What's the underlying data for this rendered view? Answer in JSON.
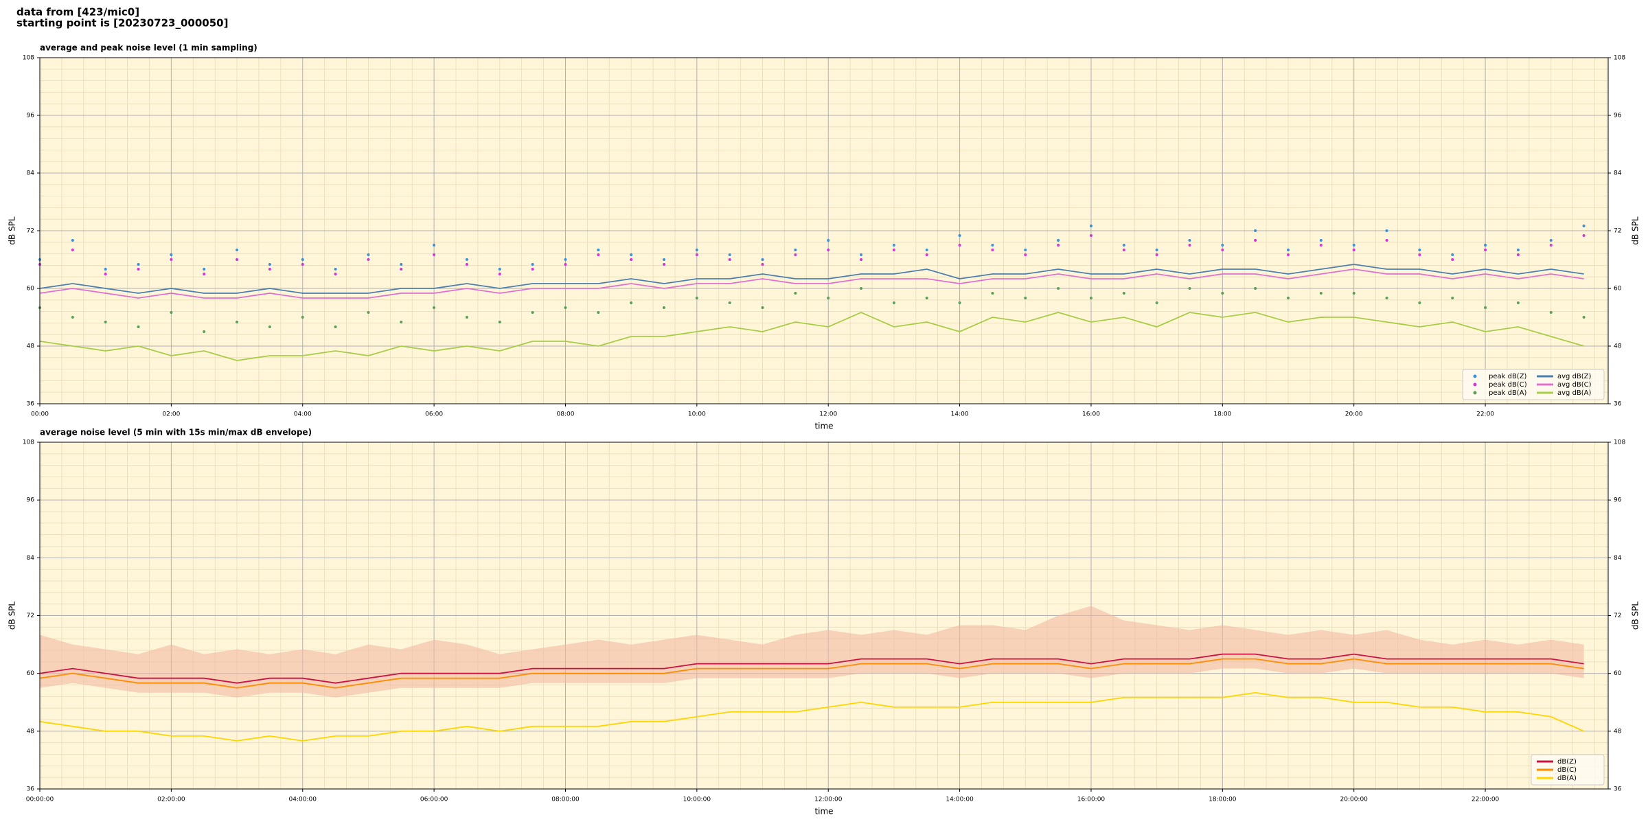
{
  "header": {
    "line1": "data from [423/mic0]",
    "line2": "starting point is [20230723_000050]"
  },
  "chart_data": [
    {
      "type": "line",
      "title": "average and peak noise level (1 min sampling)",
      "xlabel": "time",
      "ylabel": "dB SPL",
      "background": "#fff6d9",
      "grid": true,
      "minor_grid": true,
      "legend": "lower right",
      "xlim": [
        0,
        23.87
      ],
      "ylim": [
        36,
        108
      ],
      "yticks": [
        36,
        48,
        60,
        72,
        84,
        96,
        108
      ],
      "xticks": [
        {
          "value": 0,
          "label": "00:00"
        },
        {
          "value": 2,
          "label": "02:00"
        },
        {
          "value": 4,
          "label": "04:00"
        },
        {
          "value": 6,
          "label": "06:00"
        },
        {
          "value": 8,
          "label": "08:00"
        },
        {
          "value": 10,
          "label": "10:00"
        },
        {
          "value": 12,
          "label": "12:00"
        },
        {
          "value": 14,
          "label": "14:00"
        },
        {
          "value": 16,
          "label": "16:00"
        },
        {
          "value": 18,
          "label": "18:00"
        },
        {
          "value": 20,
          "label": "20:00"
        },
        {
          "value": 22,
          "label": "22:00"
        }
      ],
      "x": [
        0,
        0.5,
        1,
        1.5,
        2,
        2.5,
        3,
        3.5,
        4,
        4.5,
        5,
        5.5,
        6,
        6.5,
        7,
        7.5,
        8,
        8.5,
        9,
        9.5,
        10,
        10.5,
        11,
        11.5,
        12,
        12.5,
        13,
        13.5,
        14,
        14.5,
        15,
        15.5,
        16,
        16.5,
        17,
        17.5,
        18,
        18.5,
        19,
        19.5,
        20,
        20.5,
        21,
        21.5,
        22,
        22.5,
        23,
        23.5
      ],
      "series": [
        {
          "name": "peak dB(Z)",
          "style": "dots",
          "color": "#3b8fd9",
          "values": [
            66,
            70,
            64,
            65,
            67,
            64,
            68,
            65,
            66,
            64,
            67,
            65,
            69,
            66,
            64,
            65,
            66,
            68,
            67,
            66,
            68,
            67,
            66,
            68,
            70,
            67,
            69,
            68,
            71,
            69,
            68,
            70,
            73,
            69,
            68,
            70,
            69,
            72,
            68,
            70,
            69,
            72,
            68,
            67,
            69,
            68,
            70,
            73
          ]
        },
        {
          "name": "peak dB(C)",
          "style": "dots",
          "color": "#d633d6",
          "values": [
            65,
            68,
            63,
            64,
            66,
            63,
            66,
            64,
            65,
            63,
            66,
            64,
            67,
            65,
            63,
            64,
            65,
            67,
            66,
            65,
            67,
            66,
            65,
            67,
            68,
            66,
            68,
            67,
            69,
            68,
            67,
            69,
            71,
            68,
            67,
            69,
            68,
            70,
            67,
            69,
            68,
            70,
            67,
            66,
            68,
            67,
            69,
            71
          ]
        },
        {
          "name": "peak dB(A)",
          "style": "dots",
          "color": "#5a9e5a",
          "values": [
            56,
            54,
            53,
            52,
            55,
            51,
            53,
            52,
            54,
            52,
            55,
            53,
            56,
            54,
            53,
            55,
            56,
            55,
            57,
            56,
            58,
            57,
            56,
            59,
            58,
            60,
            57,
            58,
            57,
            59,
            58,
            60,
            58,
            59,
            57,
            60,
            59,
            60,
            58,
            59,
            59,
            58,
            57,
            58,
            56,
            57,
            55,
            54
          ]
        },
        {
          "name": "avg dB(Z)",
          "style": "line",
          "color": "#4a7fb0",
          "values": [
            60,
            61,
            60,
            59,
            60,
            59,
            59,
            60,
            59,
            59,
            59,
            60,
            60,
            61,
            60,
            61,
            61,
            61,
            62,
            61,
            62,
            62,
            63,
            62,
            62,
            63,
            63,
            64,
            62,
            63,
            63,
            64,
            63,
            63,
            64,
            63,
            64,
            64,
            63,
            64,
            65,
            64,
            64,
            63,
            64,
            63,
            64,
            63
          ]
        },
        {
          "name": "avg dB(C)",
          "style": "line",
          "color": "#e070d0",
          "values": [
            59,
            60,
            59,
            58,
            59,
            58,
            58,
            59,
            58,
            58,
            58,
            59,
            59,
            60,
            59,
            60,
            60,
            60,
            61,
            60,
            61,
            61,
            62,
            61,
            61,
            62,
            62,
            62,
            61,
            62,
            62,
            63,
            62,
            62,
            63,
            62,
            63,
            63,
            62,
            63,
            64,
            63,
            63,
            62,
            63,
            62,
            63,
            62
          ]
        },
        {
          "name": "avg dB(A)",
          "style": "line",
          "color": "#a8cc45",
          "values": [
            49,
            48,
            47,
            48,
            46,
            47,
            45,
            46,
            46,
            47,
            46,
            48,
            47,
            48,
            47,
            49,
            49,
            48,
            50,
            50,
            51,
            52,
            51,
            53,
            52,
            55,
            52,
            53,
            51,
            54,
            53,
            55,
            53,
            54,
            52,
            55,
            54,
            55,
            53,
            54,
            54,
            53,
            52,
            53,
            51,
            52,
            50,
            48
          ]
        }
      ]
    },
    {
      "type": "line",
      "title": "average noise level (5 min with 15s min/max dB envelope)",
      "xlabel": "time",
      "ylabel": "dB SPL",
      "background": "#fff6d9",
      "grid": true,
      "minor_grid": true,
      "legend": "lower right",
      "xlim": [
        0,
        23.87
      ],
      "ylim": [
        36,
        108
      ],
      "yticks": [
        36,
        48,
        60,
        72,
        84,
        96,
        108
      ],
      "xticks": [
        {
          "value": 0,
          "label": "00:00:00"
        },
        {
          "value": 2,
          "label": "02:00:00"
        },
        {
          "value": 4,
          "label": "04:00:00"
        },
        {
          "value": 6,
          "label": "06:00:00"
        },
        {
          "value": 8,
          "label": "08:00:00"
        },
        {
          "value": 10,
          "label": "10:00:00"
        },
        {
          "value": 12,
          "label": "12:00:00"
        },
        {
          "value": 14,
          "label": "14:00:00"
        },
        {
          "value": 16,
          "label": "16:00:00"
        },
        {
          "value": 18,
          "label": "18:00:00"
        },
        {
          "value": 20,
          "label": "20:00:00"
        },
        {
          "value": 22,
          "label": "22:00:00"
        }
      ],
      "x": [
        0,
        0.5,
        1,
        1.5,
        2,
        2.5,
        3,
        3.5,
        4,
        4.5,
        5,
        5.5,
        6,
        6.5,
        7,
        7.5,
        8,
        8.5,
        9,
        9.5,
        10,
        10.5,
        11,
        11.5,
        12,
        12.5,
        13,
        13.5,
        14,
        14.5,
        15,
        15.5,
        16,
        16.5,
        17,
        17.5,
        18,
        18.5,
        19,
        19.5,
        20,
        20.5,
        21,
        21.5,
        22,
        22.5,
        23,
        23.5
      ],
      "envelope": {
        "color": "#f2b9a2",
        "upper": [
          68,
          66,
          65,
          64,
          66,
          64,
          65,
          64,
          65,
          64,
          66,
          65,
          67,
          66,
          64,
          65,
          66,
          67,
          66,
          67,
          68,
          67,
          66,
          68,
          69,
          68,
          69,
          68,
          70,
          70,
          69,
          72,
          74,
          71,
          70,
          69,
          70,
          69,
          68,
          69,
          68,
          69,
          67,
          66,
          67,
          66,
          67,
          66
        ],
        "lower": [
          57,
          58,
          57,
          56,
          56,
          56,
          55,
          56,
          56,
          55,
          56,
          57,
          57,
          57,
          57,
          58,
          58,
          58,
          58,
          58,
          59,
          59,
          59,
          59,
          59,
          60,
          60,
          60,
          59,
          60,
          60,
          60,
          59,
          60,
          60,
          60,
          61,
          61,
          60,
          60,
          61,
          60,
          60,
          60,
          60,
          60,
          60,
          59
        ]
      },
      "series": [
        {
          "name": "dB(Z)",
          "style": "line",
          "color": "#cc1144",
          "values": [
            60,
            61,
            60,
            59,
            59,
            59,
            58,
            59,
            59,
            58,
            59,
            60,
            60,
            60,
            60,
            61,
            61,
            61,
            61,
            61,
            62,
            62,
            62,
            62,
            62,
            63,
            63,
            63,
            62,
            63,
            63,
            63,
            62,
            63,
            63,
            63,
            64,
            64,
            63,
            63,
            64,
            63,
            63,
            63,
            63,
            63,
            63,
            62
          ]
        },
        {
          "name": "dB(C)",
          "style": "line",
          "color": "#ff8c00",
          "values": [
            59,
            60,
            59,
            58,
            58,
            58,
            57,
            58,
            58,
            57,
            58,
            59,
            59,
            59,
            59,
            60,
            60,
            60,
            60,
            60,
            61,
            61,
            61,
            61,
            61,
            62,
            62,
            62,
            61,
            62,
            62,
            62,
            61,
            62,
            62,
            62,
            63,
            63,
            62,
            62,
            63,
            62,
            62,
            62,
            62,
            62,
            62,
            61
          ]
        },
        {
          "name": "dB(A)",
          "style": "line",
          "color": "#ffd500",
          "values": [
            50,
            49,
            48,
            48,
            47,
            47,
            46,
            47,
            46,
            47,
            47,
            48,
            48,
            49,
            48,
            49,
            49,
            49,
            50,
            50,
            51,
            52,
            52,
            52,
            53,
            54,
            53,
            53,
            53,
            54,
            54,
            54,
            54,
            55,
            55,
            55,
            55,
            56,
            55,
            55,
            54,
            54,
            53,
            53,
            52,
            52,
            51,
            48
          ]
        }
      ]
    }
  ]
}
